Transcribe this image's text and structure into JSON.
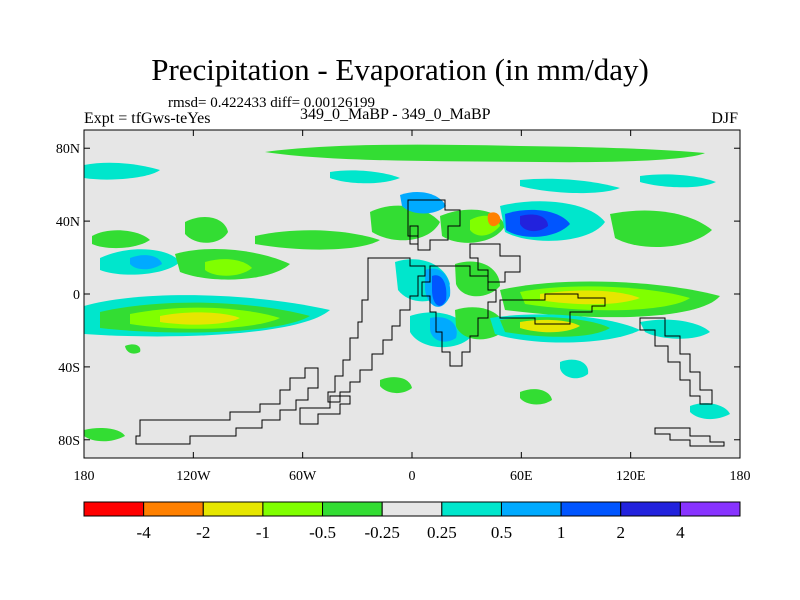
{
  "title": "Precipitation - Evaporation (in mm/day)",
  "stats": "rmsd= 0.422433 diff= 0.00126199",
  "left_label": "Expt = tfGws-teYes",
  "center_label": "349_0_MaBP - 349_0_MaBP",
  "right_label": "DJF",
  "y_ticks": [
    {
      "label": "80N",
      "lat": 80
    },
    {
      "label": "40N",
      "lat": 40
    },
    {
      "label": "0",
      "lat": 0
    },
    {
      "label": "40S",
      "lat": -40
    },
    {
      "label": "80S",
      "lat": -80
    }
  ],
  "x_ticks": [
    {
      "label": "180",
      "lon": -180
    },
    {
      "label": "120W",
      "lon": -120
    },
    {
      "label": "60W",
      "lon": -60
    },
    {
      "label": "0",
      "lon": 0
    },
    {
      "label": "60E",
      "lon": 60
    },
    {
      "label": "120E",
      "lon": 120
    },
    {
      "label": "180",
      "lon": 180
    }
  ],
  "colorbar": {
    "colors": [
      "#ff0000",
      "#ff8000",
      "#e6e600",
      "#80ff00",
      "#33dd33",
      "#e6e6e6",
      "#00e6cc",
      "#00aaff",
      "#0055ff",
      "#2222dd",
      "#8833ff"
    ],
    "labels": [
      "-4",
      "-2",
      "-1",
      "-0.5",
      "-0.25",
      "0.25",
      "0.5",
      "1",
      "2",
      "4"
    ]
  },
  "palette": {
    "background": "#e6e6e6",
    "dry_light": "#33dd33",
    "dry_mid": "#80ff00",
    "dry_strong": "#e6e600",
    "dry_very": "#ff8000",
    "wet_light": "#00e6cc",
    "wet_mid": "#00aaff",
    "wet_strong": "#0055ff",
    "wet_very": "#2222dd"
  }
}
